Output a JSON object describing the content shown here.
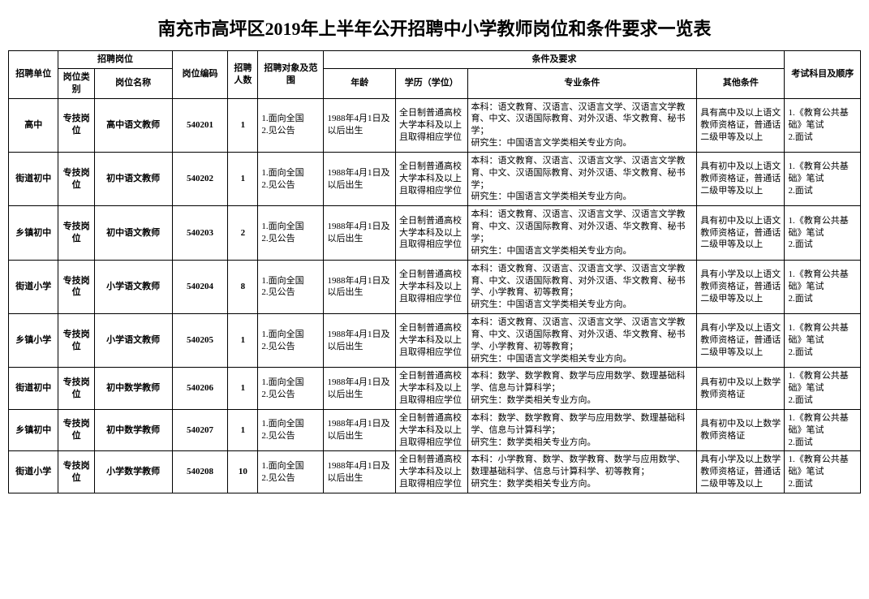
{
  "title": "南充市高坪区2019年上半年公开招聘中小学教师岗位和条件要求一览表",
  "headers": {
    "unit": "招聘单位",
    "position_group": "招聘岗位",
    "position_cat": "岗位类别",
    "position_name": "岗位名称",
    "code": "岗位编码",
    "count": "招聘人数",
    "scope": "招聘对象及范围",
    "req_group": "条件及要求",
    "age": "年龄",
    "edu": "学历（学位）",
    "major": "专业条件",
    "other": "其他条件",
    "exam": "考试科目及顺序"
  },
  "rows": [
    {
      "unit": "高中",
      "cat": "专技岗位",
      "posname": "高中语文教师",
      "code": "540201",
      "count": "1",
      "scope": "1.面向全国\n2.见公告",
      "age": "1988年4月1日及以后出生",
      "edu": "全日制普通高校大学本科及以上且取得相应学位",
      "major": "本科：语文教育、汉语言、汉语言文学、汉语言文学教育、中文、汉语国际教育、对外汉语、华文教育、秘书学；\n研究生：中国语言文学类相关专业方向。",
      "other": "具有高中及以上语文教师资格证，普通话二级甲等及以上",
      "exam": "1.《教育公共基础》笔试\n2.面试"
    },
    {
      "unit": "街道初中",
      "cat": "专技岗位",
      "posname": "初中语文教师",
      "code": "540202",
      "count": "1",
      "scope": "1.面向全国\n2.见公告",
      "age": "1988年4月1日及以后出生",
      "edu": "全日制普通高校大学本科及以上且取得相应学位",
      "major": "本科：语文教育、汉语言、汉语言文学、汉语言文学教育、中文、汉语国际教育、对外汉语、华文教育、秘书学；\n研究生：中国语言文学类相关专业方向。",
      "other": "具有初中及以上语文教师资格证，普通话二级甲等及以上",
      "exam": "1.《教育公共基础》笔试\n2.面试"
    },
    {
      "unit": "乡镇初中",
      "cat": "专技岗位",
      "posname": "初中语文教师",
      "code": "540203",
      "count": "2",
      "scope": "1.面向全国\n2.见公告",
      "age": "1988年4月1日及以后出生",
      "edu": "全日制普通高校大学本科及以上且取得相应学位",
      "major": "本科：语文教育、汉语言、汉语言文学、汉语言文学教育、中文、汉语国际教育、对外汉语、华文教育、秘书学；\n研究生：中国语言文学类相关专业方向。",
      "other": "具有初中及以上语文教师资格证，普通话二级甲等及以上",
      "exam": "1.《教育公共基础》笔试\n2.面试"
    },
    {
      "unit": "街道小学",
      "cat": "专技岗位",
      "posname": "小学语文教师",
      "code": "540204",
      "count": "8",
      "scope": "1.面向全国\n2.见公告",
      "age": "1988年4月1日及以后出生",
      "edu": "全日制普通高校大学本科及以上且取得相应学位",
      "major": "本科：语文教育、汉语言、汉语言文学、汉语言文学教育、中文、汉语国际教育、对外汉语、华文教育、秘书学、小学教育、初等教育；\n研究生：中国语言文学类相关专业方向。",
      "other": "具有小学及以上语文教师资格证，普通话二级甲等及以上",
      "exam": "1.《教育公共基础》笔试\n2.面试"
    },
    {
      "unit": "乡镇小学",
      "cat": "专技岗位",
      "posname": "小学语文教师",
      "code": "540205",
      "count": "1",
      "scope": "1.面向全国\n2.见公告",
      "age": "1988年4月1日及以后出生",
      "edu": "全日制普通高校大学本科及以上且取得相应学位",
      "major": "本科：语文教育、汉语言、汉语言文学、汉语言文学教育、中文、汉语国际教育、对外汉语、华文教育、秘书学、小学教育、初等教育；\n研究生：中国语言文学类相关专业方向。",
      "other": "具有小学及以上语文教师资格证，普通话二级甲等及以上",
      "exam": "1.《教育公共基础》笔试\n2.面试"
    },
    {
      "unit": "街道初中",
      "cat": "专技岗位",
      "posname": "初中数学教师",
      "code": "540206",
      "count": "1",
      "scope": "1.面向全国\n2.见公告",
      "age": "1988年4月1日及以后出生",
      "edu": "全日制普通高校大学本科及以上且取得相应学位",
      "major": "本科：数学、数学教育、数学与应用数学、数理基础科学、信息与计算科学；\n研究生：数学类相关专业方向。",
      "other": "具有初中及以上数学教师资格证",
      "exam": "1.《教育公共基础》笔试\n2.面试"
    },
    {
      "unit": "乡镇初中",
      "cat": "专技岗位",
      "posname": "初中数学教师",
      "code": "540207",
      "count": "1",
      "scope": "1.面向全国\n2.见公告",
      "age": "1988年4月1日及以后出生",
      "edu": "全日制普通高校大学本科及以上且取得相应学位",
      "major": "本科：数学、数学教育、数学与应用数学、数理基础科学、信息与计算科学；\n研究生：数学类相关专业方向。",
      "other": "具有初中及以上数学教师资格证",
      "exam": "1.《教育公共基础》笔试\n2.面试"
    },
    {
      "unit": "街道小学",
      "cat": "专技岗位",
      "posname": "小学数学教师",
      "code": "540208",
      "count": "10",
      "scope": "1.面向全国\n2.见公告",
      "age": "1988年4月1日及以后出生",
      "edu": "全日制普通高校大学本科及以上且取得相应学位",
      "major": "本科：小学教育、数学、数学教育、数学与应用数学、数理基础科学、信息与计算科学、初等教育；\n研究生：数学类相关专业方向。",
      "other": "具有小学及以上数学教师资格证，普通话二级甲等及以上",
      "exam": "1.《教育公共基础》笔试\n2.面试"
    }
  ]
}
